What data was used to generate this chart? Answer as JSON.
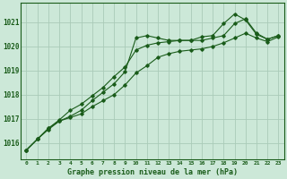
{
  "bg_color": "#cce8d8",
  "grid_color": "#aacbb8",
  "line_color": "#1a5c1a",
  "title": "Graphe pression niveau de la mer (hPa)",
  "xlim": [
    -0.5,
    23.5
  ],
  "ylim": [
    1015.3,
    1021.8
  ],
  "yticks": [
    1016,
    1017,
    1018,
    1019,
    1020,
    1021
  ],
  "xticks": [
    0,
    1,
    2,
    3,
    4,
    5,
    6,
    7,
    8,
    9,
    10,
    11,
    12,
    13,
    14,
    15,
    16,
    17,
    18,
    19,
    20,
    21,
    22,
    23
  ],
  "series": [
    [
      1015.7,
      1016.15,
      1016.55,
      1016.9,
      1017.05,
      1017.2,
      1017.5,
      1017.75,
      1018.0,
      1018.4,
      1018.9,
      1019.2,
      1019.55,
      1019.7,
      1019.8,
      1019.85,
      1019.9,
      1020.0,
      1020.15,
      1020.35,
      1020.55,
      1020.35,
      1020.2,
      1020.4
    ],
    [
      1015.7,
      1016.15,
      1016.6,
      1016.95,
      1017.35,
      1017.6,
      1017.95,
      1018.3,
      1018.75,
      1019.15,
      1019.85,
      1020.05,
      1020.15,
      1020.2,
      1020.25,
      1020.25,
      1020.4,
      1020.45,
      1020.95,
      1021.35,
      1021.1,
      1020.5,
      1020.3,
      1020.45
    ],
    [
      1015.7,
      1016.15,
      1016.6,
      1016.9,
      1017.1,
      1017.35,
      1017.75,
      1018.1,
      1018.45,
      1018.95,
      1020.35,
      1020.45,
      1020.35,
      1020.25,
      1020.25,
      1020.25,
      1020.25,
      1020.35,
      1020.45,
      1020.95,
      1021.15,
      1020.55,
      1020.3,
      1020.45
    ]
  ]
}
